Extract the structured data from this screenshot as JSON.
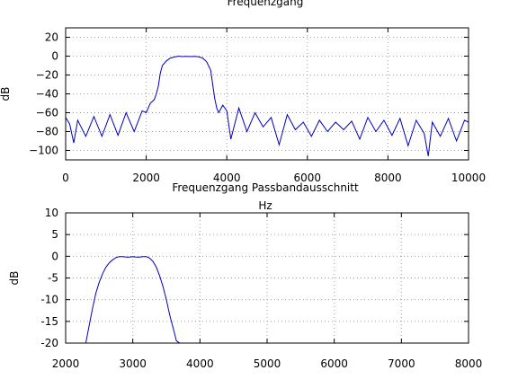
{
  "chart_data": [
    {
      "type": "line",
      "title": "Frequenzgang",
      "xlabel": "Hz",
      "ylabel": "dB",
      "xlim": [
        0,
        10000
      ],
      "ylim": [
        -110,
        30
      ],
      "xticks": [
        0,
        2000,
        4000,
        6000,
        8000,
        10000
      ],
      "yticks": [
        20,
        0,
        -20,
        -40,
        -60,
        -80,
        -100
      ],
      "ytick_labels": [
        "20",
        "0",
        "−20",
        "−40",
        "−60",
        "−80",
        "−100"
      ],
      "grid": true,
      "color": "#0000c0",
      "series": [
        {
          "x": [
            0,
            100,
            200,
            300,
            500,
            700,
            900,
            1100,
            1300,
            1500,
            1700,
            1900,
            2000,
            2100,
            2200,
            2250,
            2300,
            2350,
            2400,
            2500,
            2600,
            2700,
            2800,
            2900,
            3000,
            3100,
            3200,
            3300,
            3400,
            3500,
            3600,
            3650,
            3700,
            3750,
            3800,
            3900,
            4000,
            4100,
            4300,
            4500,
            4700,
            4900,
            5100,
            5300,
            5500,
            5700,
            5900,
            6100,
            6300,
            6500,
            6700,
            6900,
            7100,
            7300,
            7500,
            7700,
            7900,
            8100,
            8300,
            8500,
            8700,
            8900,
            9000,
            9100,
            9300,
            9500,
            9700,
            9900,
            10000
          ],
          "y": [
            -65,
            -72,
            -92,
            -68,
            -85,
            -64,
            -85,
            -62,
            -84,
            -60,
            -80,
            -58,
            -60,
            -50,
            -46,
            -40,
            -32,
            -18,
            -10,
            -5,
            -2,
            -1,
            0,
            -0.5,
            -0.3,
            -0.5,
            -0.2,
            -0.8,
            -2,
            -6,
            -15,
            -30,
            -45,
            -55,
            -60,
            -52,
            -58,
            -88,
            -55,
            -80,
            -60,
            -75,
            -65,
            -94,
            -62,
            -78,
            -70,
            -85,
            -68,
            -80,
            -70,
            -78,
            -69,
            -88,
            -65,
            -80,
            -68,
            -84,
            -66,
            -95,
            -68,
            -82,
            -106,
            -70,
            -85,
            -66,
            -90,
            -68,
            -70
          ]
        }
      ]
    },
    {
      "type": "line",
      "title": "Frequenzgang Passbandausschnitt",
      "xlabel": "",
      "ylabel": "dB",
      "xlim": [
        2000,
        8000
      ],
      "ylim": [
        -20,
        10
      ],
      "xticks": [
        2000,
        3000,
        4000,
        5000,
        6000,
        7000,
        8000
      ],
      "yticks": [
        10,
        5,
        0,
        -5,
        -10,
        -15,
        -20
      ],
      "ytick_labels": [
        "10",
        "5",
        "0",
        "-5",
        "-10",
        "-15",
        "-20"
      ],
      "grid": true,
      "color": "#0000c0",
      "series": [
        {
          "x": [
            2300,
            2350,
            2400,
            2450,
            2500,
            2550,
            2600,
            2650,
            2700,
            2750,
            2800,
            2850,
            2900,
            2950,
            3000,
            3050,
            3100,
            3150,
            3200,
            3250,
            3300,
            3350,
            3400,
            3450,
            3500,
            3550,
            3600,
            3650,
            3700
          ],
          "y": [
            -20.5,
            -16,
            -12,
            -8.5,
            -6,
            -4,
            -2.5,
            -1.5,
            -0.8,
            -0.3,
            -0.1,
            -0.1,
            -0.2,
            -0.2,
            -0.1,
            -0.2,
            -0.2,
            -0.1,
            -0.1,
            -0.4,
            -1.2,
            -2.5,
            -4.5,
            -7,
            -10,
            -13.5,
            -16.5,
            -19.5,
            -21
          ]
        }
      ]
    }
  ]
}
